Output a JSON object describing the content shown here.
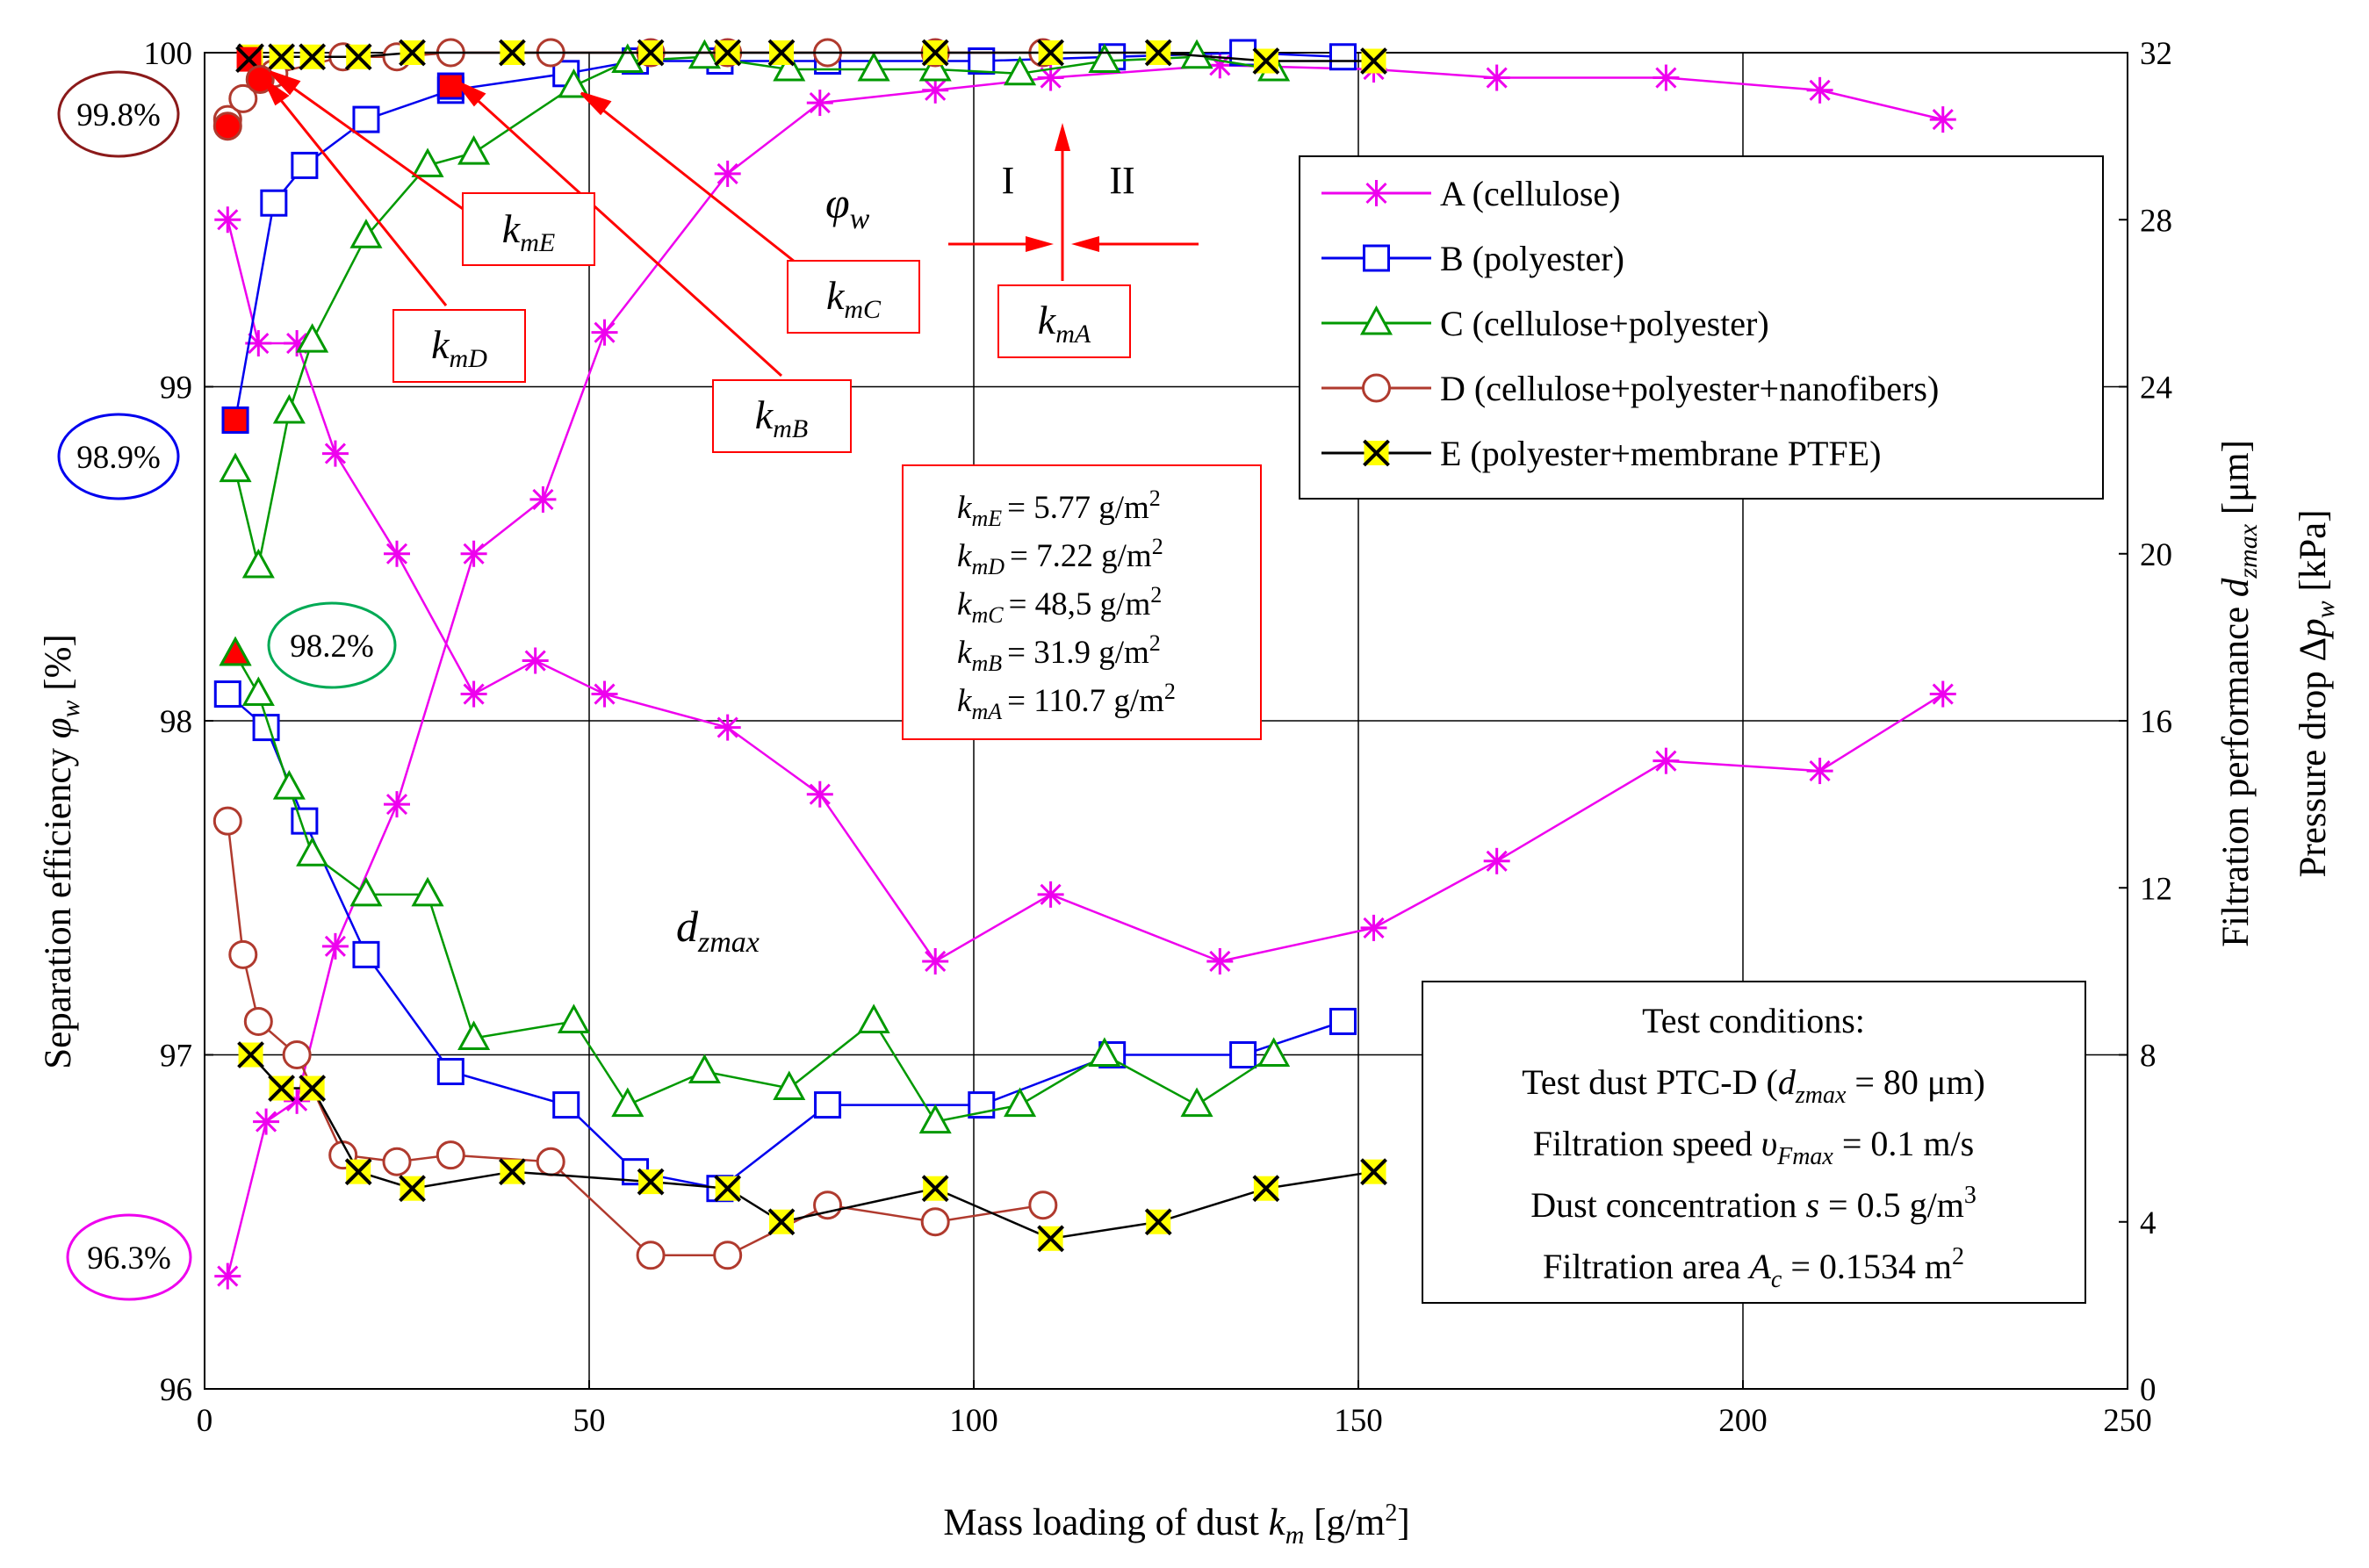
{
  "chart_data": {
    "type": "line",
    "title": "",
    "xlabel": "Mass loading of dust k_m [g/m²]",
    "xlabel_parts": {
      "main": "Mass loading of dust ",
      "var": "k",
      "sub": "m",
      "unit_pre": " [g/m",
      "unit_sup": "2",
      "unit_post": "]"
    },
    "ylabel_left_parts": {
      "main": "Separation efficiency ",
      "var": "φ",
      "sub": "w",
      "unit": " [%]"
    },
    "ylabel_right1_parts": {
      "main": "Filtration performance ",
      "var": "d",
      "sub": "zmax",
      "unit": " [μm]"
    },
    "ylabel_right2_parts": {
      "main": "Pressure drop Δ",
      "var": "p",
      "sub": "w",
      "unit": " [kPa]"
    },
    "xlim": [
      0,
      250
    ],
    "ylim_left": [
      96,
      100
    ],
    "ylim_right": [
      0,
      32
    ],
    "x_ticks": [
      "0",
      "50",
      "100",
      "150",
      "200",
      "250"
    ],
    "y_left_ticks": [
      "96",
      "97",
      "98",
      "99",
      "100"
    ],
    "y_right_ticks": [
      "0",
      "4",
      "8",
      "12",
      "16",
      "20",
      "24",
      "28",
      "32"
    ],
    "grid": true,
    "legend": {
      "position": "top-right",
      "entries": [
        {
          "key": "A",
          "label": "A (cellulose)",
          "color": "#ee00ee",
          "marker": "asterisk"
        },
        {
          "key": "B",
          "label": "B (polyester)",
          "color": "#0000ee",
          "marker": "square"
        },
        {
          "key": "C",
          "label": "C (cellulose+polyester)",
          "color": "#009900",
          "marker": "triangle"
        },
        {
          "key": "D",
          "label": "D (cellulose+polyester+nanofibers)",
          "color": "#b03a2e",
          "marker": "circle"
        },
        {
          "key": "E",
          "label": "E (polyester+membrane PTFE)",
          "color": "#000000",
          "marker": "xbox"
        }
      ]
    },
    "series": [
      {
        "key": "A",
        "quantity": "efficiency",
        "axis": "left",
        "points": [
          [
            3,
            99.5
          ],
          [
            7,
            99.13
          ],
          [
            12,
            99.13
          ],
          [
            17,
            98.8
          ],
          [
            25,
            98.5
          ],
          [
            35,
            98.08
          ],
          [
            43,
            98.18
          ],
          [
            52,
            98.08
          ],
          [
            68,
            97.98
          ],
          [
            80,
            97.78
          ],
          [
            95,
            97.28
          ],
          [
            110,
            97.48
          ],
          [
            132,
            97.28
          ],
          [
            152,
            97.38
          ],
          [
            168,
            97.58
          ],
          [
            190,
            97.88
          ],
          [
            210,
            97.85
          ],
          [
            226,
            98.08
          ]
        ]
      },
      {
        "key": "A",
        "quantity": "dzmax",
        "axis": "right",
        "points": [
          [
            3,
            2.7
          ],
          [
            8,
            6.4
          ],
          [
            12,
            6.9
          ],
          [
            17,
            10.6
          ],
          [
            25,
            14.0
          ],
          [
            35,
            20.0
          ],
          [
            44,
            21.3
          ],
          [
            52,
            25.3
          ],
          [
            68,
            29.1
          ],
          [
            80,
            30.8
          ],
          [
            95,
            31.1
          ],
          [
            110,
            31.4
          ],
          [
            132,
            31.7
          ],
          [
            152,
            31.6
          ],
          [
            168,
            31.4
          ],
          [
            190,
            31.4
          ],
          [
            210,
            31.1
          ],
          [
            226,
            30.4
          ]
        ]
      },
      {
        "key": "B",
        "quantity": "efficiency",
        "axis": "left",
        "points": [
          [
            3,
            98.08
          ],
          [
            8,
            97.98
          ],
          [
            13,
            97.7
          ],
          [
            21,
            97.3
          ],
          [
            32,
            96.95
          ],
          [
            47,
            96.85
          ],
          [
            56,
            96.65
          ],
          [
            67,
            96.6
          ],
          [
            81,
            96.85
          ],
          [
            101,
            96.85
          ],
          [
            118,
            97.0
          ],
          [
            135,
            97.0
          ],
          [
            148,
            97.1
          ]
        ]
      },
      {
        "key": "B",
        "quantity": "dzmax",
        "axis": "right",
        "points": [
          [
            4,
            23.2
          ],
          [
            9,
            28.4
          ],
          [
            13,
            29.3
          ],
          [
            21,
            30.4
          ],
          [
            32,
            31.1
          ],
          [
            47,
            31.5
          ],
          [
            56,
            31.8
          ],
          [
            67,
            31.8
          ],
          [
            81,
            31.8
          ],
          [
            101,
            31.8
          ],
          [
            118,
            31.9
          ],
          [
            135,
            32.0
          ],
          [
            148,
            31.9
          ]
        ]
      },
      {
        "key": "C",
        "quantity": "efficiency",
        "axis": "left",
        "points": [
          [
            4,
            98.2
          ],
          [
            7,
            98.08
          ],
          [
            11,
            97.8
          ],
          [
            14,
            97.6
          ],
          [
            21,
            97.48
          ],
          [
            29,
            97.48
          ],
          [
            35,
            97.05
          ],
          [
            48,
            97.1
          ],
          [
            55,
            96.85
          ],
          [
            65,
            96.95
          ],
          [
            76,
            96.9
          ],
          [
            87,
            97.1
          ],
          [
            95,
            96.8
          ],
          [
            106,
            96.85
          ],
          [
            117,
            97.0
          ],
          [
            129,
            96.85
          ],
          [
            139,
            97.0
          ]
        ]
      },
      {
        "key": "C",
        "quantity": "dzmax",
        "axis": "right",
        "points": [
          [
            4,
            22.0
          ],
          [
            7,
            19.7
          ],
          [
            11,
            23.4
          ],
          [
            14,
            25.1
          ],
          [
            21,
            27.6
          ],
          [
            29,
            29.3
          ],
          [
            35,
            29.6
          ],
          [
            48,
            31.2
          ],
          [
            55,
            31.8
          ],
          [
            65,
            31.9
          ],
          [
            76,
            31.6
          ],
          [
            87,
            31.6
          ],
          [
            95,
            31.6
          ],
          [
            106,
            31.5
          ],
          [
            117,
            31.8
          ],
          [
            129,
            31.9
          ],
          [
            139,
            31.6
          ]
        ]
      },
      {
        "key": "D",
        "quantity": "efficiency",
        "axis": "left",
        "points": [
          [
            3,
            97.7
          ],
          [
            5,
            97.3
          ],
          [
            7,
            97.1
          ],
          [
            12,
            97.0
          ],
          [
            18,
            96.7
          ],
          [
            25,
            96.68
          ],
          [
            32,
            96.7
          ],
          [
            45,
            96.68
          ],
          [
            58,
            96.4
          ],
          [
            68,
            96.4
          ],
          [
            81,
            96.55
          ],
          [
            95,
            96.5
          ],
          [
            109,
            96.55
          ]
        ]
      },
      {
        "key": "D",
        "quantity": "dzmax",
        "axis": "right",
        "points": [
          [
            3,
            30.4
          ],
          [
            5,
            30.9
          ],
          [
            9,
            31.5
          ],
          [
            18,
            31.9
          ],
          [
            25,
            31.9
          ],
          [
            32,
            32.0
          ],
          [
            45,
            32.0
          ],
          [
            58,
            32.0
          ],
          [
            68,
            32.0
          ],
          [
            81,
            32.0
          ],
          [
            95,
            32.0
          ],
          [
            109,
            32.0
          ]
        ]
      },
      {
        "key": "E",
        "quantity": "efficiency",
        "axis": "left",
        "points": [
          [
            6,
            97.0
          ],
          [
            10,
            96.9
          ],
          [
            14,
            96.9
          ],
          [
            20,
            96.65
          ],
          [
            27,
            96.6
          ],
          [
            40,
            96.65
          ],
          [
            58,
            96.62
          ],
          [
            68,
            96.6
          ],
          [
            75,
            96.5
          ],
          [
            95,
            96.6
          ],
          [
            110,
            96.45
          ],
          [
            124,
            96.5
          ],
          [
            138,
            96.6
          ],
          [
            152,
            96.65
          ]
        ]
      },
      {
        "key": "E",
        "quantity": "dzmax",
        "axis": "right",
        "points": [
          [
            6,
            31.9
          ],
          [
            10,
            31.9
          ],
          [
            14,
            31.9
          ],
          [
            20,
            31.9
          ],
          [
            27,
            32.0
          ],
          [
            40,
            32.0
          ],
          [
            58,
            32.0
          ],
          [
            68,
            32.0
          ],
          [
            75,
            32.0
          ],
          [
            95,
            32.0
          ],
          [
            110,
            32.0
          ],
          [
            124,
            32.0
          ],
          [
            138,
            31.8
          ],
          [
            152,
            31.8
          ]
        ]
      }
    ],
    "critical_points": [
      {
        "key": "E",
        "x": 5.77,
        "y": 99.98,
        "color": "#ff0000",
        "shape": "xbox"
      },
      {
        "key": "D",
        "x": 7.22,
        "y": 99.92,
        "color": "#ff0000",
        "shape": "circle"
      },
      {
        "key": "D",
        "x": 3,
        "y": 99.78,
        "color": "#ff0000",
        "shape": "circle"
      },
      {
        "key": "B",
        "x": 4,
        "y": 98.9,
        "color": "#ff0000",
        "shape": "square"
      },
      {
        "key": "C",
        "x": 4,
        "y": 98.2,
        "color": "#ff0000",
        "shape": "triangle"
      },
      {
        "key": "B",
        "x": 32,
        "y": 99.9,
        "color": "#ff0000",
        "shape": "square"
      }
    ],
    "annotations": {
      "ellipses": [
        {
          "text": "99.8%",
          "color": "#8b1a1a"
        },
        {
          "text": "98.9%",
          "color": "#0000ee"
        },
        {
          "text": "98.2%",
          "color": "#00aa55"
        },
        {
          "text": "96.3%",
          "color": "#ee00ee"
        }
      ],
      "km_boxes": [
        {
          "id": "E",
          "var": "k",
          "sub": "mE"
        },
        {
          "id": "D",
          "var": "k",
          "sub": "mD"
        },
        {
          "id": "C",
          "var": "k",
          "sub": "mC"
        },
        {
          "id": "B",
          "var": "k",
          "sub": "mB"
        },
        {
          "id": "A",
          "var": "k",
          "sub": "mA"
        }
      ],
      "phi_label": {
        "var": "φ",
        "sub": "w"
      },
      "dz_label": {
        "var": "d",
        "sub": "zmax"
      },
      "region_left": "I",
      "region_right": "II",
      "km_values": [
        {
          "sub": "mE",
          "value": "= 5.77 g/m",
          "sup": "2"
        },
        {
          "sub": "mD",
          "value": "= 7.22 g/m",
          "sup": "2"
        },
        {
          "sub": "mC",
          "value": "= 48,5 g/m",
          "sup": "2"
        },
        {
          "sub": "mB",
          "value": "= 31.9 g/m",
          "sup": "2"
        },
        {
          "sub": "mA",
          "value": "= 110.7 g/m",
          "sup": "2"
        }
      ],
      "test_conditions": {
        "title": "Test conditions:",
        "line1": {
          "pre": "Test dust PTC-D (",
          "var": "d",
          "sub": "zmax",
          "post": " = 80 μm)"
        },
        "line2": {
          "pre": "Filtration speed ",
          "var": "υ",
          "sub": "Fmax",
          "post": " = 0.1 m/s"
        },
        "line3": {
          "pre": "Dust concentration ",
          "var": "s",
          "post": " = 0.5 g/m",
          "sup": "3"
        },
        "line4": {
          "pre": "Filtration area ",
          "var": "A",
          "sub": "c",
          "post": " = 0.1534 m",
          "sup": "2"
        }
      }
    }
  }
}
